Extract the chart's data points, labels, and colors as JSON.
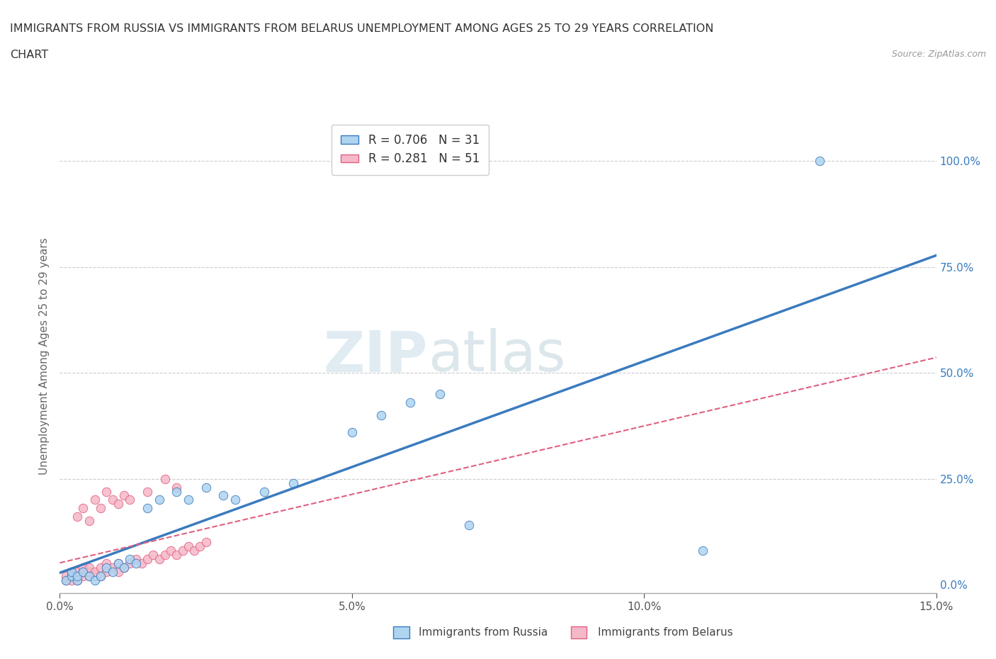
{
  "title_line1": "IMMIGRANTS FROM RUSSIA VS IMMIGRANTS FROM BELARUS UNEMPLOYMENT AMONG AGES 25 TO 29 YEARS CORRELATION",
  "title_line2": "CHART",
  "source": "Source: ZipAtlas.com",
  "ylabel": "Unemployment Among Ages 25 to 29 years",
  "xlim": [
    0.0,
    0.15
  ],
  "ylim": [
    -0.02,
    1.1
  ],
  "xticks": [
    0.0,
    0.05,
    0.1,
    0.15
  ],
  "xticklabels": [
    "0.0%",
    "5.0%",
    "10.0%",
    "15.0%"
  ],
  "ytick_positions": [
    0.0,
    0.25,
    0.5,
    0.75,
    1.0
  ],
  "yticklabels": [
    "0.0%",
    "25.0%",
    "50.0%",
    "75.0%",
    "100.0%"
  ],
  "russia_R": 0.706,
  "russia_N": 31,
  "belarus_R": 0.281,
  "belarus_N": 51,
  "russia_color": "#aed4f0",
  "belarus_color": "#f5b8c8",
  "russia_line_color": "#3a7bbf",
  "belarus_line_color": "#e06080",
  "watermark_color": "#d8e8f0",
  "russia_x": [
    0.001,
    0.002,
    0.002,
    0.003,
    0.003,
    0.004,
    0.005,
    0.006,
    0.007,
    0.008,
    0.009,
    0.01,
    0.011,
    0.012,
    0.013,
    0.015,
    0.017,
    0.02,
    0.022,
    0.025,
    0.028,
    0.03,
    0.035,
    0.04,
    0.05,
    0.055,
    0.06,
    0.065,
    0.07,
    0.11,
    0.13
  ],
  "russia_y": [
    0.01,
    0.02,
    0.03,
    0.01,
    0.02,
    0.03,
    0.02,
    0.01,
    0.02,
    0.04,
    0.03,
    0.05,
    0.04,
    0.06,
    0.05,
    0.18,
    0.2,
    0.22,
    0.2,
    0.23,
    0.21,
    0.2,
    0.22,
    0.24,
    0.36,
    0.4,
    0.43,
    0.45,
    0.14,
    0.08,
    1.0
  ],
  "belarus_x": [
    0.001,
    0.001,
    0.002,
    0.002,
    0.002,
    0.003,
    0.003,
    0.003,
    0.004,
    0.004,
    0.004,
    0.005,
    0.005,
    0.005,
    0.006,
    0.006,
    0.007,
    0.007,
    0.008,
    0.008,
    0.009,
    0.01,
    0.01,
    0.011,
    0.012,
    0.013,
    0.014,
    0.015,
    0.016,
    0.017,
    0.018,
    0.019,
    0.02,
    0.021,
    0.022,
    0.023,
    0.024,
    0.025,
    0.003,
    0.004,
    0.005,
    0.006,
    0.007,
    0.008,
    0.009,
    0.01,
    0.011,
    0.012,
    0.015,
    0.018,
    0.02
  ],
  "belarus_y": [
    0.01,
    0.02,
    0.01,
    0.02,
    0.03,
    0.01,
    0.02,
    0.03,
    0.02,
    0.03,
    0.04,
    0.02,
    0.03,
    0.04,
    0.02,
    0.03,
    0.02,
    0.04,
    0.03,
    0.05,
    0.04,
    0.03,
    0.05,
    0.04,
    0.05,
    0.06,
    0.05,
    0.06,
    0.07,
    0.06,
    0.07,
    0.08,
    0.07,
    0.08,
    0.09,
    0.08,
    0.09,
    0.1,
    0.16,
    0.18,
    0.15,
    0.2,
    0.18,
    0.22,
    0.2,
    0.19,
    0.21,
    0.2,
    0.22,
    0.25,
    0.23
  ]
}
